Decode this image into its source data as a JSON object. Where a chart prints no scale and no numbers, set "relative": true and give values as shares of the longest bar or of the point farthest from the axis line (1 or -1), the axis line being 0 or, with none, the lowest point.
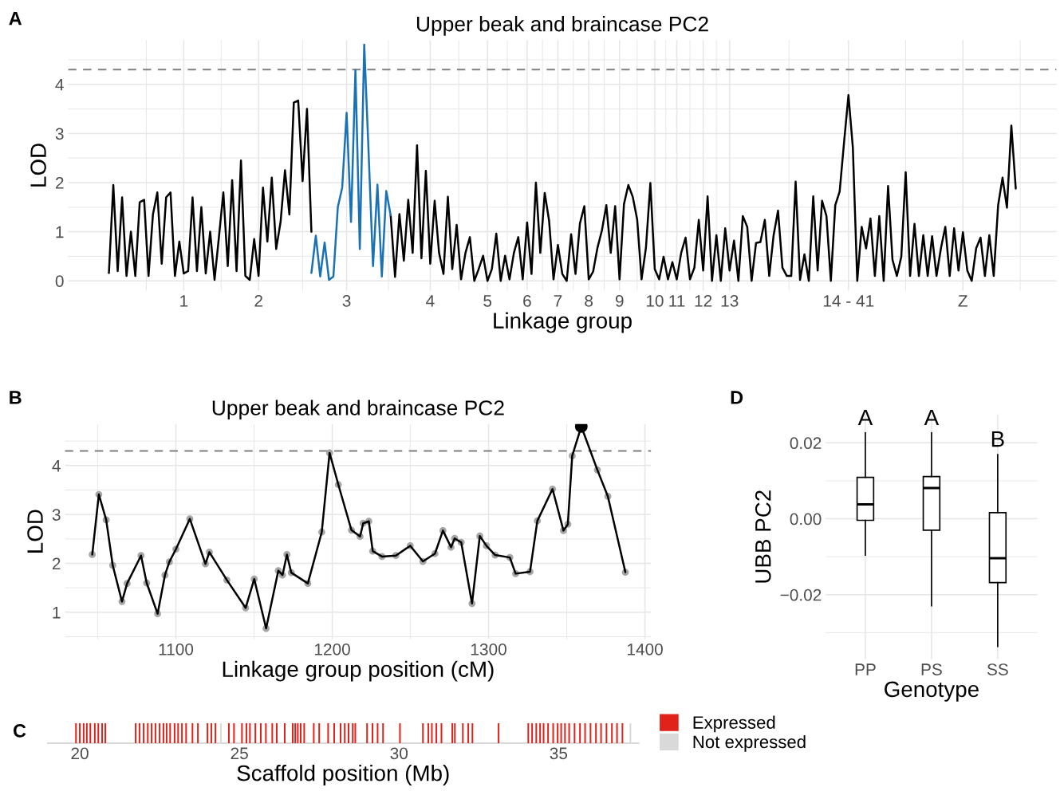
{
  "chart_data": [
    {
      "type": "line",
      "title": "Upper beak and braincase PC2",
      "xlabel": "Linkage group",
      "ylabel": "LOD",
      "annotations": [
        "A"
      ],
      "ylim": [
        -0.2,
        4.9
      ],
      "yticks": [
        0,
        1,
        2,
        3,
        4
      ],
      "grid": true,
      "ref_lines": [
        {
          "axis": "y",
          "value": 4.3,
          "color": "#808080",
          "line_style": "dashed"
        }
      ],
      "categories": [
        null,
        null,
        null,
        null,
        null,
        null,
        null,
        null,
        null,
        null,
        null,
        null,
        null,
        null,
        null,
        null,
        null,
        "1",
        null,
        null,
        null,
        null,
        null,
        null,
        null,
        null,
        null,
        null,
        null,
        null,
        null,
        null,
        null,
        null,
        "2",
        null,
        null,
        null,
        null,
        null,
        null,
        null,
        null,
        null,
        null,
        null,
        null,
        null,
        null,
        null,
        null,
        null,
        null,
        null,
        "3",
        null,
        null,
        null,
        null,
        null,
        null,
        null,
        null,
        null,
        null,
        null,
        null,
        null,
        null,
        null,
        null,
        null,
        null,
        "4",
        null,
        null,
        null,
        null,
        null,
        null,
        null,
        null,
        null,
        null,
        null,
        null,
        "5",
        null,
        null,
        null,
        null,
        null,
        null,
        null,
        null,
        "6",
        null,
        null,
        null,
        null,
        null,
        null,
        "7",
        null,
        null,
        null,
        null,
        null,
        null,
        "8",
        null,
        null,
        null,
        null,
        null,
        null,
        "9",
        null,
        null,
        null,
        null,
        null,
        null,
        null,
        "10",
        null,
        null,
        null,
        null,
        "11",
        null,
        null,
        null,
        null,
        null,
        "12",
        null,
        null,
        null,
        null,
        null,
        "13",
        null,
        null,
        null,
        null,
        null,
        null,
        null,
        null,
        null,
        null,
        null,
        null,
        null,
        null,
        null,
        null,
        null,
        null,
        null,
        null,
        null,
        null,
        null,
        null,
        null,
        null,
        "14 - 41",
        null,
        null,
        null,
        null,
        null,
        null,
        null,
        null,
        null,
        null,
        null,
        null,
        null,
        null,
        null,
        null,
        null,
        null,
        null,
        null,
        null,
        null,
        null,
        null,
        null,
        "Z",
        null,
        null,
        null,
        null,
        null,
        null,
        null,
        null,
        null,
        null,
        null,
        null
      ],
      "series": [
        {
          "color": "#000000",
          "values": [
            0.16,
            1.95,
            0.2,
            1.7,
            0.1,
            1.0,
            0.1,
            1.6,
            1.65,
            0.1,
            1.35,
            1.8,
            0.35,
            1.7,
            1.8,
            0.1,
            0.8,
            0.15,
            0.2,
            1.7,
            0.2,
            1.5,
            0.15,
            1.0,
            0.02,
            0.9,
            1.8,
            0.3,
            2.05,
            0.2,
            2.45,
            0.1,
            0.02,
            0.85,
            0.1,
            1.9,
            0.8,
            2.1,
            0.65,
            1.2,
            2.25,
            1.35,
            3.63,
            3.67,
            2.03,
            3.5,
            1.0,
            null,
            null,
            null,
            null,
            null,
            null,
            null,
            null,
            null,
            null,
            null,
            null,
            null,
            null,
            null,
            null,
            null,
            1.34,
            0.08,
            1.36,
            0.41,
            1.65,
            0.57,
            2.76,
            0.46,
            2.24,
            0.35,
            1.63,
            0.57,
            0.14,
            1.71,
            0.24,
            1.14,
            0.03,
            0.57,
            0.89,
            0,
            0.24,
            0.51,
            0,
            0.24,
            0.96,
            0,
            0.51,
            0.03,
            0.57,
            0.89,
            0.03,
            1.19,
            0.14,
            2.0,
            0.57,
            1.79,
            1.22,
            0.03,
            0.73,
            0.14,
            0,
            0.95,
            0.14,
            1.17,
            1.52,
            0.03,
            0.19,
            0.68,
            1.03,
            1.54,
            0.57,
            1.52,
            0.03,
            1.56,
            1.95,
            1.71,
            1.25,
            0.03,
            0.68,
            1.99,
            0.24,
            0.03,
            0.49,
            0.03,
            0.38,
            0.03,
            0.57,
            0.88,
            0.03,
            0.27,
            1.24,
            0.21,
            1.72,
            0,
            0.93,
            0,
            1.07,
            0.21,
            0.82,
            0,
            1.32,
            1.1,
            0,
            0.77,
            0.79,
            1.24,
            0.1,
            0.93,
            1.43,
            0.27,
            0.1,
            0.1,
            2.02,
            0.02,
            0.54,
            0,
            1.72,
            0.21,
            1.63,
            1.32,
            0,
            1.54,
            1.82,
            2.82,
            3.78,
            2.71,
            0,
            1.1,
            0.66,
            1.27,
            0.1,
            1.32,
            0,
            1.93,
            0.43,
            0.1,
            0.49,
            2.21,
            0.1,
            1.16,
            0.1,
            0.93,
            0.1,
            0.91,
            0.1,
            0.66,
            1.1,
            0.1,
            1.07,
            0.21,
            0.99,
            0.21,
            0,
            0.66,
            0.88,
            0.1,
            0.93,
            0.1,
            1.54,
            2.1,
            1.49,
            3.16,
            1.88
          ]
        },
        {
          "color": "#1a72b5",
          "values": [
            null,
            null,
            null,
            null,
            null,
            null,
            null,
            null,
            null,
            null,
            null,
            null,
            null,
            null,
            null,
            null,
            null,
            null,
            null,
            null,
            null,
            null,
            null,
            null,
            null,
            null,
            null,
            null,
            null,
            null,
            null,
            null,
            null,
            null,
            null,
            null,
            null,
            null,
            null,
            null,
            null,
            null,
            null,
            null,
            null,
            null,
            0.16,
            0.92,
            0.09,
            0.78,
            0.02,
            0.09,
            1.5,
            1.9,
            3.42,
            1.2,
            4.29,
            0.65,
            4.81,
            2.6,
            0.3,
            1.96,
            0.09,
            1.83,
            1.34,
            null,
            null,
            null,
            null,
            null,
            null,
            null,
            null,
            null,
            null,
            null,
            null,
            null,
            null,
            null,
            null,
            null,
            null,
            null,
            null,
            null,
            null,
            null,
            null,
            null,
            null,
            null,
            null,
            null,
            null,
            null,
            null,
            null,
            null,
            null,
            null,
            null,
            null,
            null,
            null,
            null,
            null,
            null,
            null,
            null,
            null,
            null,
            null,
            null,
            null,
            null,
            null,
            null,
            null,
            null,
            null,
            null,
            null,
            null,
            null,
            null,
            null,
            null,
            null,
            null,
            null,
            null,
            null,
            null,
            null,
            null,
            null,
            null,
            null,
            null,
            null,
            null,
            null,
            null,
            null,
            null,
            null,
            null,
            null,
            null,
            null,
            null,
            null,
            null,
            null,
            null,
            null,
            null,
            null,
            null,
            null,
            null,
            null,
            null,
            null,
            null,
            null,
            null,
            null,
            null,
            null,
            null,
            null,
            null,
            null,
            null,
            null,
            null,
            null,
            null,
            null,
            null,
            null,
            null,
            null,
            null,
            null,
            null,
            null,
            null,
            null,
            null,
            null,
            null,
            null,
            null,
            null,
            null,
            null,
            null,
            null,
            null,
            null,
            null,
            null,
            null,
            null
          ]
        }
      ]
    },
    {
      "type": "line",
      "title": "Upper beak and braincase PC2",
      "xlabel": "Linkage group position (cM)",
      "ylabel": "LOD",
      "annotations": [
        "B"
      ],
      "xlim": [
        1029,
        1404
      ],
      "ylim": [
        0.45,
        4.85
      ],
      "xticks": [
        1100,
        1200,
        1300,
        1400
      ],
      "yticks": [
        1,
        2,
        3,
        4
      ],
      "grid": true,
      "ref_lines": [
        {
          "axis": "y",
          "value": 4.3,
          "color": "#808080",
          "line_style": "dashed"
        }
      ],
      "series": [
        {
          "type": "scatter",
          "color": "#a6a6a6",
          "marker": "circle",
          "x": [
            1046.5,
            1050.7,
            1055.4,
            1059.6,
            1065.5,
            1068.8,
            1077.7,
            1081.3,
            1088.3,
            1093.0,
            1095.8,
            1100,
            1108.9,
            1118.9,
            1121.4,
            1132.6,
            1144.6,
            1150.1,
            1157.7,
            1165.5,
            1168.2,
            1171.0,
            1173.8,
            1184.4,
            1193.3,
            1198.3,
            1203.9,
            1212.3,
            1217.8,
            1219.8,
            1223.4,
            1225.9,
            1231.8,
            1240.7,
            1249.9,
            1258.0,
            1265.7,
            1270.8,
            1276.0,
            1278.3,
            1282.5,
            1289.4,
            1294.4,
            1298.6,
            1304.2,
            1313.6,
            1317.3,
            1326.5,
            1331.2,
            1340.9,
            1347.9,
            1350.7,
            1353.5,
            1369.6,
            1376.3,
            1387.5
          ],
          "values": [
            2.18,
            3.41,
            2.89,
            1.96,
            1.22,
            1.59,
            2.16,
            1.6,
            0.97,
            1.76,
            2.03,
            2.29,
            2.91,
            1.99,
            2.23,
            1.66,
            1.09,
            1.68,
            0.67,
            1.85,
            1.76,
            2.18,
            1.81,
            1.59,
            2.64,
            4.26,
            3.61,
            2.68,
            2.55,
            2.82,
            2.86,
            2.25,
            2.14,
            2.16,
            2.36,
            2.04,
            2.2,
            2.67,
            2.33,
            2.51,
            2.43,
            1.18,
            2.56,
            2.36,
            2.17,
            2.12,
            1.79,
            1.83,
            2.87,
            3.52,
            2.67,
            2.8,
            4.2,
            3.91,
            3.37,
            1.82
          ]
        },
        {
          "type": "line",
          "color": "#000000",
          "x": [
            1046.5,
            1050.7,
            1055.4,
            1059.6,
            1065.5,
            1068.8,
            1077.7,
            1081.3,
            1088.3,
            1093.0,
            1095.8,
            1100,
            1108.9,
            1118.9,
            1121.4,
            1132.6,
            1144.6,
            1150.1,
            1157.7,
            1165.5,
            1168.2,
            1171.0,
            1173.8,
            1184.4,
            1193.3,
            1198.3,
            1203.9,
            1212.3,
            1217.8,
            1219.8,
            1223.4,
            1225.9,
            1231.8,
            1240.7,
            1249.9,
            1258.0,
            1265.7,
            1270.8,
            1276.0,
            1278.3,
            1282.5,
            1289.4,
            1294.4,
            1298.6,
            1304.2,
            1313.6,
            1317.3,
            1326.5,
            1331.2,
            1340.9,
            1347.9,
            1350.7,
            1353.5,
            1359.3,
            1369.6,
            1376.3,
            1387.5
          ],
          "values": [
            2.18,
            3.41,
            2.89,
            1.96,
            1.22,
            1.59,
            2.16,
            1.6,
            0.97,
            1.76,
            2.03,
            2.29,
            2.91,
            1.99,
            2.23,
            1.66,
            1.09,
            1.68,
            0.67,
            1.85,
            1.76,
            2.18,
            1.81,
            1.59,
            2.64,
            4.26,
            3.61,
            2.68,
            2.55,
            2.82,
            2.86,
            2.25,
            2.14,
            2.16,
            2.36,
            2.04,
            2.2,
            2.67,
            2.33,
            2.51,
            2.43,
            1.18,
            2.56,
            2.36,
            2.17,
            2.12,
            1.79,
            1.83,
            2.87,
            3.52,
            2.67,
            2.8,
            4.2,
            4.8,
            3.91,
            3.37,
            1.82
          ]
        },
        {
          "type": "bubble",
          "color": "#000000",
          "x": [
            1359.3
          ],
          "values": [
            4.8
          ],
          "sizes": [
            1
          ]
        }
      ]
    },
    {
      "type": "bar",
      "relative": true,
      "xlabel": "Scaffold position (Mb)",
      "annotations": [
        "C"
      ],
      "xlim": [
        19.0,
        37.5
      ],
      "xticks": [
        20,
        25,
        30,
        35
      ],
      "tick_labels": "x",
      "legend": "right",
      "series": [
        {
          "name": "Expressed",
          "color": "#e0221b",
          "x": [
            19.88,
            20.0,
            20.12,
            20.22,
            20.33,
            20.47,
            20.58,
            20.7,
            20.8,
            21.75,
            21.87,
            22.0,
            22.13,
            22.25,
            22.37,
            22.5,
            22.62,
            22.72,
            22.83,
            22.97,
            23.08,
            23.2,
            23.33,
            23.53,
            23.7,
            24.0,
            24.12,
            24.25,
            24.67,
            24.83,
            25.08,
            25.22,
            25.33,
            25.5,
            25.67,
            25.83,
            26.03,
            26.17,
            26.42,
            26.67,
            26.75,
            26.83,
            26.92,
            27.03,
            27.33,
            27.5,
            27.78,
            27.97,
            28.17,
            28.3,
            28.42,
            28.55,
            28.63,
            29.0,
            29.17,
            29.33,
            29.5,
            30.03,
            30.75,
            30.92,
            31.03,
            31.17,
            31.33,
            31.67,
            31.75,
            32.0,
            32.17,
            32.3,
            33.12,
            34.05,
            34.17,
            34.3,
            34.42,
            34.53,
            34.67,
            34.83,
            34.97,
            35.08,
            35.2,
            35.33,
            35.5,
            35.67,
            35.83,
            36.0,
            36.17,
            36.33,
            36.5,
            36.67,
            36.83,
            37.0
          ],
          "values": [
            1,
            1,
            1,
            1,
            1,
            1,
            1,
            1,
            1,
            1,
            1,
            1,
            1,
            1,
            1,
            1,
            1,
            1,
            1,
            1,
            1,
            1,
            1,
            1,
            1,
            1,
            1,
            1,
            1,
            1,
            1,
            1,
            1,
            1,
            1,
            1,
            1,
            1,
            1,
            1,
            1,
            1,
            1,
            1,
            1,
            1,
            1,
            1,
            1,
            1,
            1,
            1,
            1,
            1,
            1,
            1,
            1,
            1,
            1,
            1,
            1,
            1,
            1,
            1,
            1,
            1,
            1,
            1,
            1,
            1,
            1,
            1,
            1,
            1,
            1,
            1,
            1,
            1,
            1,
            1,
            1,
            1,
            1,
            1,
            1,
            1,
            1,
            1,
            1,
            1
          ]
        },
        {
          "name": "Not expressed",
          "color": "#d9d9d9",
          "x": [
            24.42,
            37.25
          ],
          "values": [
            1,
            1
          ]
        }
      ]
    },
    {
      "type": "box",
      "xlabel": "Genotype",
      "ylabel": "UBB PC2",
      "annotations": [
        "D",
        "A",
        "A",
        "B"
      ],
      "categories": [
        "PP",
        "PS",
        "SS"
      ],
      "color": "#ffffff",
      "ylim": [
        -0.037,
        0.0275
      ],
      "yticks": [
        {
          "value": -0.02,
          "label": "−0.02"
        },
        {
          "value": 0,
          "label": "0.00"
        },
        {
          "value": 0.02,
          "label": "0.02"
        }
      ],
      "grid": true,
      "boxes": [
        {
          "low": -0.0096,
          "q1": -0.0004,
          "median": 0.0038,
          "q3": 0.0109,
          "high": 0.0226
        },
        {
          "low": -0.0229,
          "q1": -0.003,
          "median": 0.0081,
          "q3": 0.0111,
          "high": 0.0226
        },
        {
          "low": -0.0336,
          "q1": -0.0168,
          "median": -0.0104,
          "q3": 0.0016,
          "high": 0.0169
        }
      ]
    }
  ]
}
